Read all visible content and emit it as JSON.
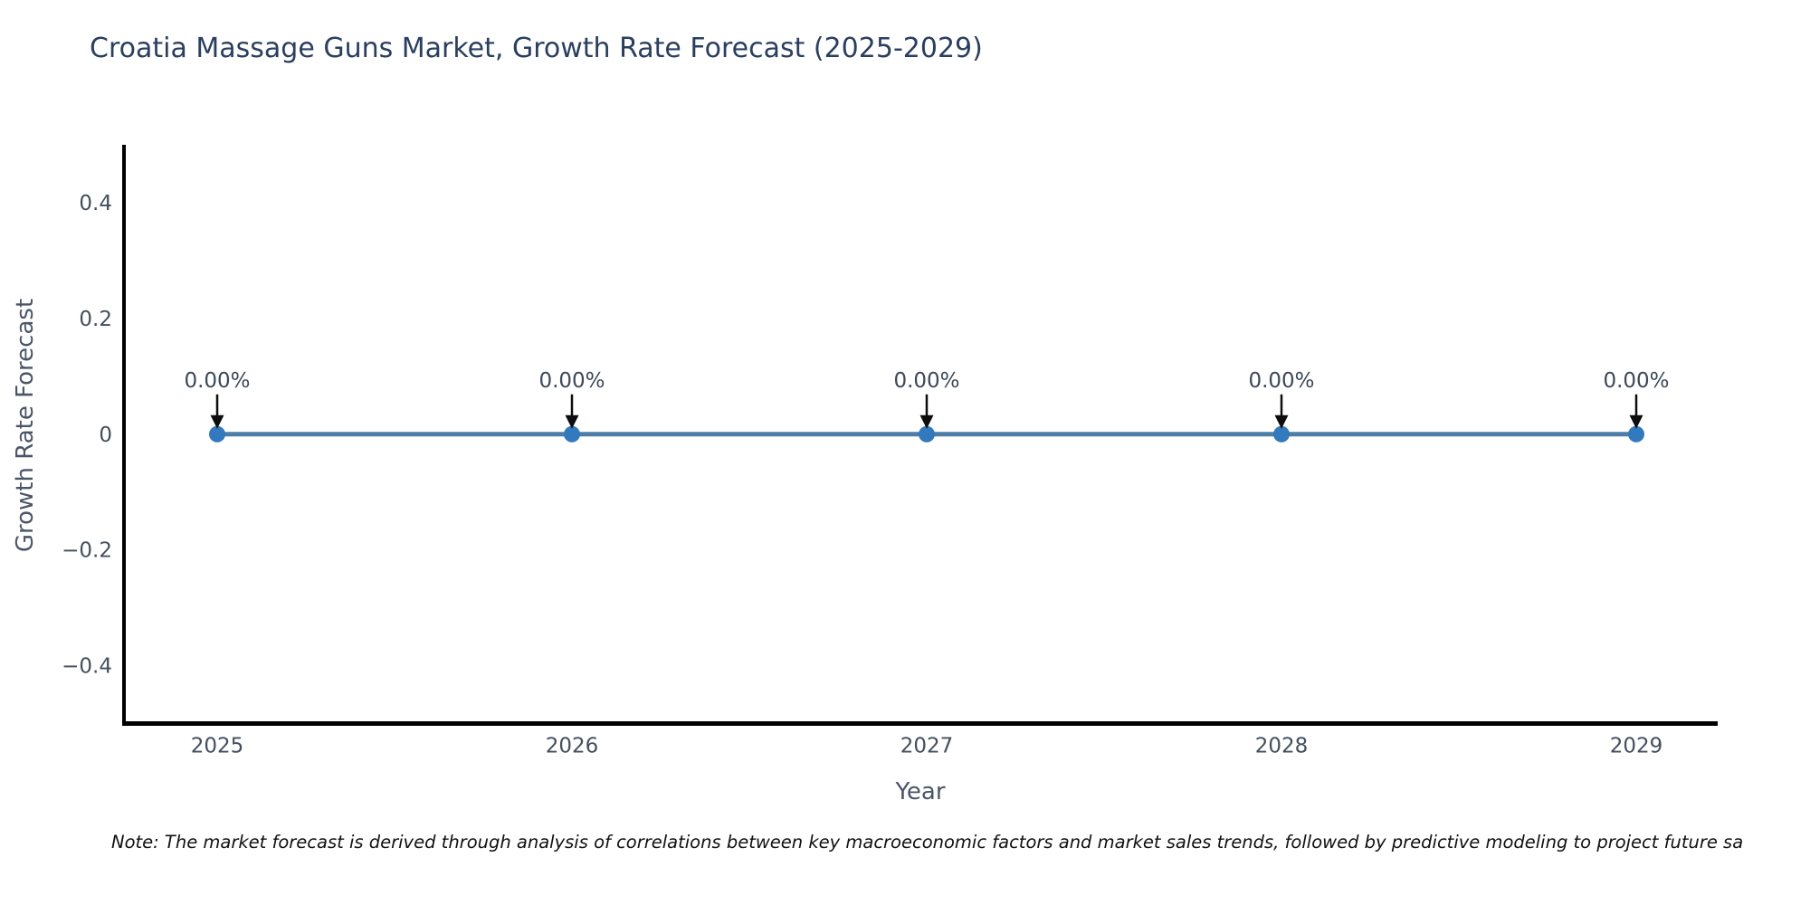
{
  "note": "Note: The market forecast is derived through analysis of correlations between key macroeconomic factors and market sales trends, followed by predictive modeling to project future sa",
  "chart_data": {
    "type": "line",
    "title": "Croatia Massage Guns Market, Growth Rate Forecast (2025-2029)",
    "xlabel": "Year",
    "ylabel": "Growth Rate Forecast",
    "categories": [
      "2025",
      "2026",
      "2027",
      "2028",
      "2029"
    ],
    "series": [
      {
        "name": "Growth Rate Forecast",
        "values": [
          0,
          0,
          0,
          0,
          0
        ]
      }
    ],
    "point_labels": [
      "0.00%",
      "0.00%",
      "0.00%",
      "0.00%",
      "0.00%"
    ],
    "ytick_values": [
      0.4,
      0.2,
      0,
      -0.2,
      -0.4
    ],
    "ytick_labels": [
      "0.4",
      "0.2",
      "0",
      "−0.2",
      "−0.4"
    ],
    "ylim": [
      -0.5,
      0.5
    ],
    "grid": false,
    "legend_position": "none",
    "colors": {
      "line": "#4d7ea8",
      "marker": "#3279bd",
      "axis": "#000000",
      "title_text": "#2a3f5f",
      "axis_title_text": "#4a5568",
      "tick_text": "#444f5e",
      "annotation_text": "#3d4859",
      "arrow": "#0d0d0d",
      "note_text": "#111111",
      "background": "#ffffff"
    }
  }
}
